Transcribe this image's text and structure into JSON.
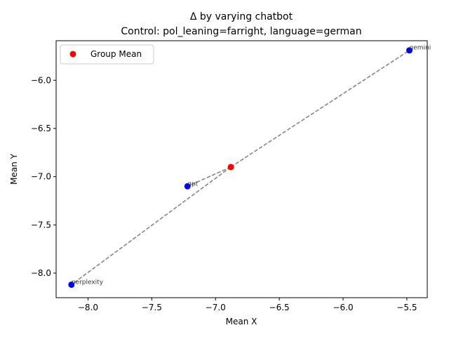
{
  "chart_data": {
    "type": "scatter",
    "title_line1": "Δ by varying chatbot",
    "title_line2": "Control: pol_leaning=farright, language=german",
    "xlabel": "Mean X",
    "ylabel": "Mean Y",
    "xlim": [
      -8.25,
      -5.34
    ],
    "ylim": [
      -8.255,
      -5.59
    ],
    "x_ticks": [
      -8.0,
      -7.5,
      -7.0,
      -6.5,
      -6.0,
      -5.5
    ],
    "x_tick_labels": [
      "−8.0",
      "−7.5",
      "−7.0",
      "−6.5",
      "−6.0",
      "−5.5"
    ],
    "y_ticks": [
      -8.0,
      -7.5,
      -7.0,
      -6.5,
      -6.0
    ],
    "y_tick_labels": [
      "−8.0",
      "−7.5",
      "−7.0",
      "−6.5",
      "−6.0"
    ],
    "points": [
      {
        "label": "gemini",
        "x": -5.48,
        "y": -5.69
      },
      {
        "label": "gpt",
        "x": -7.22,
        "y": -7.1
      },
      {
        "label": "perplexity",
        "x": -8.13,
        "y": -8.12
      }
    ],
    "group_mean": {
      "x": -6.88,
      "y": -6.9
    },
    "legend": {
      "label": "Group Mean",
      "position": "top-left"
    },
    "colors": {
      "points": "#0000ff",
      "group_mean": "#ff0000",
      "lines": "#808080"
    },
    "grid": false
  }
}
